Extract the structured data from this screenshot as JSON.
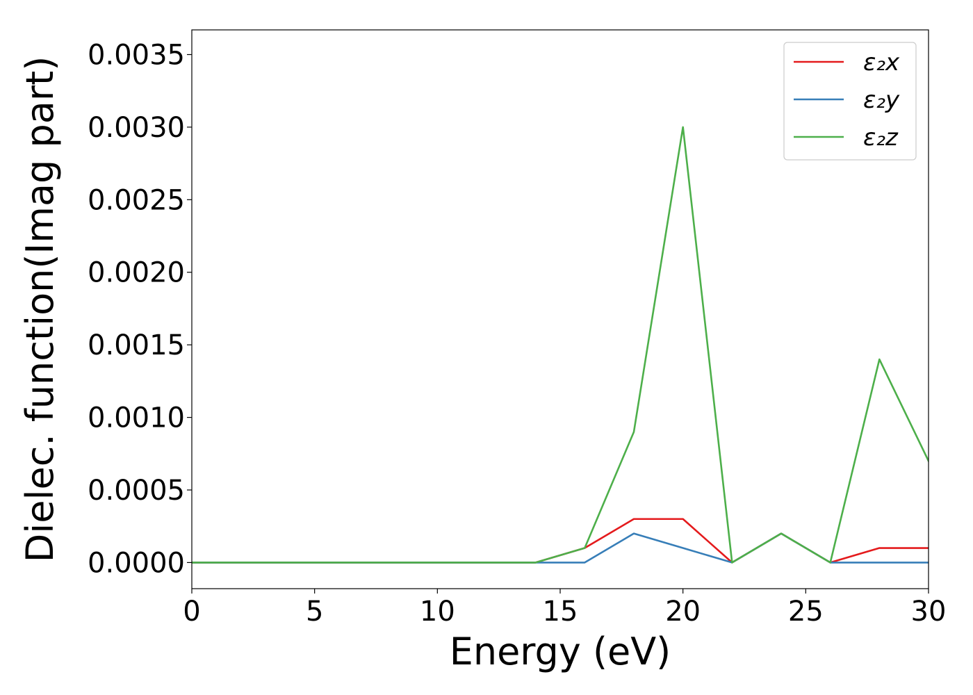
{
  "chart_data": {
    "type": "line",
    "xlabel": "Energy (eV)",
    "ylabel": "Dielec. function(Imag part)",
    "xlim": [
      0,
      30
    ],
    "ylim": [
      -0.00018,
      0.00367
    ],
    "xticks": [
      0,
      5,
      10,
      15,
      20,
      25,
      30
    ],
    "xtick_labels": [
      "0",
      "5",
      "10",
      "15",
      "20",
      "25",
      "30"
    ],
    "yticks": [
      0,
      0.0005,
      0.001,
      0.0015,
      0.002,
      0.0025,
      0.003,
      0.0035
    ],
    "ytick_labels": [
      "0.0000",
      "0.0005",
      "0.0010",
      "0.0015",
      "0.0020",
      "0.0025",
      "0.0030",
      "0.0035"
    ],
    "grid": false,
    "legend_position": "top-right",
    "x": [
      0,
      2,
      4,
      6,
      8,
      10,
      12,
      14,
      16,
      18,
      20,
      22,
      24,
      26,
      28,
      30
    ],
    "series": [
      {
        "name": "ε₂x",
        "color": "#e41a1c",
        "values": [
          0,
          0,
          0,
          0,
          0,
          0,
          0,
          0,
          0.0001,
          0.0003,
          0.0003,
          0,
          0.0002,
          0,
          0.0001,
          0.0001
        ]
      },
      {
        "name": "ε₂y",
        "color": "#377eb8",
        "values": [
          0,
          0,
          0,
          0,
          0,
          0,
          0,
          0,
          0,
          0.0002,
          0.0001,
          0,
          0.0002,
          0,
          0,
          0
        ]
      },
      {
        "name": "ε₂z",
        "color": "#4daf4a",
        "values": [
          0,
          0,
          0,
          0,
          0,
          0,
          0,
          0,
          0.0001,
          0.0009,
          0.003,
          0,
          0.0002,
          0,
          0.0014,
          0.0007
        ]
      }
    ]
  }
}
